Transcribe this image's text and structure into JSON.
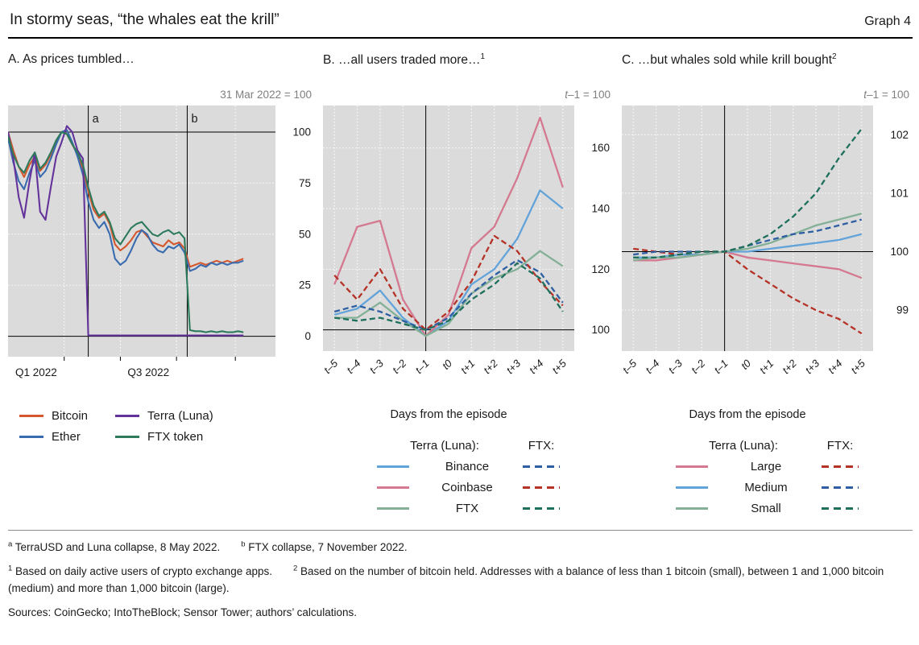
{
  "header": {
    "title": "In stormy seas, “the whales eat the krill”",
    "graph_label": "Graph 4"
  },
  "colors": {
    "plot_bg": "#dbdbdb",
    "gridline": "#ffffff",
    "reference": "#000000",
    "unit_text": "#7f7f7f"
  },
  "chart_data": [
    {
      "id": "A",
      "type": "line",
      "title": "A. As prices tumbled…",
      "unit": "31 Mar 2022 = 100",
      "ylim": [
        -10,
        113
      ],
      "yticks": [
        0,
        25,
        50,
        75,
        100
      ],
      "gridlines_y": [
        25,
        50,
        75
      ],
      "ref_lines_y": [
        100,
        0
      ],
      "grid_x": [
        0.21,
        0.42,
        0.63,
        0.85
      ],
      "xtick_marks": [
        0.21,
        0.42,
        0.63,
        0.85
      ],
      "xtick_labels": [
        {
          "x": 0.105,
          "label": "Q1 2022"
        },
        {
          "x": 0.525,
          "label": "Q3 2022"
        }
      ],
      "event_lines": [
        {
          "x": 0.3,
          "label": "a"
        },
        {
          "x": 0.67,
          "label": "b"
        }
      ],
      "x": [
        0,
        0.02,
        0.04,
        0.06,
        0.08,
        0.1,
        0.12,
        0.14,
        0.16,
        0.18,
        0.2,
        0.22,
        0.24,
        0.26,
        0.28,
        0.3,
        0.32,
        0.34,
        0.36,
        0.38,
        0.4,
        0.42,
        0.44,
        0.46,
        0.48,
        0.5,
        0.52,
        0.54,
        0.56,
        0.58,
        0.6,
        0.62,
        0.64,
        0.66,
        0.68,
        0.7,
        0.72,
        0.74,
        0.76,
        0.78,
        0.8,
        0.82,
        0.84,
        0.86,
        0.88
      ],
      "series": [
        {
          "name": "Bitcoin",
          "color": "#d4572e",
          "dash": false,
          "values": [
            100,
            91,
            83,
            78,
            84,
            88,
            81,
            84,
            89,
            95,
            100,
            99,
            94,
            89,
            82,
            71,
            62,
            58,
            60,
            55,
            45,
            42,
            44,
            47,
            51,
            52,
            49,
            46,
            45,
            44,
            47,
            45,
            46,
            43,
            34,
            35,
            36,
            35,
            36,
            37,
            36,
            37,
            36,
            37,
            38
          ]
        },
        {
          "name": "Ether",
          "color": "#3a6bae",
          "dash": false,
          "values": [
            97,
            85,
            76,
            72,
            80,
            86,
            78,
            81,
            87,
            94,
            100,
            101,
            95,
            88,
            79,
            66,
            57,
            53,
            56,
            50,
            38,
            35,
            37,
            42,
            48,
            52,
            50,
            45,
            42,
            41,
            44,
            43,
            45,
            41,
            32,
            33,
            35,
            34,
            36,
            35,
            36,
            35,
            36,
            36,
            37
          ]
        },
        {
          "name": "Terra (Luna)",
          "color": "#63339b",
          "dash": false,
          "values": [
            100,
            87,
            68,
            58,
            76,
            90,
            61,
            57,
            73,
            88,
            95,
            103,
            100,
            91,
            87,
            0.5,
            0.4,
            0.4,
            0.4,
            0.4,
            0.4,
            0.4,
            0.4,
            0.4,
            0.4,
            0.4,
            0.4,
            0.4,
            0.4,
            0.4,
            0.4,
            0.4,
            0.4,
            0.4,
            0.4,
            0.4,
            0.4,
            0.4,
            0.4,
            0.4,
            0.4,
            0.4,
            0.4,
            0.4,
            0.4
          ]
        },
        {
          "name": "FTX token",
          "color": "#2d7a5c",
          "dash": false,
          "values": [
            98,
            89,
            83,
            80,
            86,
            90,
            82,
            85,
            90,
            96,
            100,
            99,
            94,
            90,
            84,
            73,
            64,
            59,
            61,
            56,
            48,
            45,
            49,
            53,
            55,
            56,
            53,
            50,
            49,
            51,
            52,
            50,
            51,
            48,
            3,
            2.5,
            2.5,
            2,
            2.5,
            2,
            2.5,
            2,
            2,
            2.5,
            2
          ]
        }
      ],
      "legend": {
        "items": [
          {
            "label": "Bitcoin",
            "color": "#d4572e"
          },
          {
            "label": "Ether",
            "color": "#3a6bae"
          },
          {
            "label": "Terra (Luna)",
            "color": "#63339b"
          },
          {
            "label": "FTX token",
            "color": "#2d7a5c"
          }
        ]
      }
    },
    {
      "id": "B",
      "type": "line",
      "title": "B. …all users traded more…",
      "title_sup": "1",
      "unit_italic": "t",
      "unit_rest": "–1 = 100",
      "xaxis_title": "Days from the episode",
      "categories": [
        "t–5",
        "t–4",
        "t–3",
        "t–2",
        "t–1",
        "t0",
        "t+1",
        "t+2",
        "t+3",
        "t+4",
        "t+5"
      ],
      "ylim": [
        93,
        174
      ],
      "yticks": [
        100,
        120,
        140,
        160
      ],
      "gridlines_y": [
        120,
        140,
        160
      ],
      "ref_lines_y": [
        100
      ],
      "vline_category": 4,
      "series": [
        {
          "name": "Binance",
          "episode": "Terra (Luna)",
          "color": "#62a3da",
          "dash": false,
          "values": [
            105,
            107,
            113,
            104,
            98,
            103,
            115,
            120,
            130,
            146,
            140
          ]
        },
        {
          "name": "Coinbase",
          "episode": "Terra (Luna)",
          "color": "#d4798f",
          "dash": false,
          "values": [
            115,
            134,
            136,
            110,
            98,
            105,
            127,
            134,
            150,
            170,
            147
          ]
        },
        {
          "name": "FTX",
          "episode": "Terra (Luna)",
          "color": "#84b097",
          "dash": false,
          "values": [
            104,
            104,
            109,
            103,
            98,
            102,
            112,
            117,
            120,
            126,
            121
          ]
        },
        {
          "name": "Binance",
          "episode": "FTX",
          "color": "#2e5fa3",
          "dash": true,
          "values": [
            106,
            108,
            106,
            103,
            100,
            104,
            112,
            118,
            123,
            119,
            109
          ]
        },
        {
          "name": "Coinbase",
          "episode": "FTX",
          "color": "#b53227",
          "dash": true,
          "values": [
            118,
            110,
            120,
            107,
            100,
            106,
            116,
            131,
            126,
            116,
            108
          ]
        },
        {
          "name": "FTX",
          "episode": "FTX",
          "color": "#1e6f5c",
          "dash": true,
          "values": [
            104,
            103,
            104,
            102,
            100,
            103,
            110,
            115,
            122,
            117,
            106
          ]
        }
      ],
      "legend": {
        "left_header": "Terra (Luna):",
        "right_header": "FTX:",
        "rows": [
          {
            "label": "Binance",
            "solid": "#62a3da",
            "dashed": "#2e5fa3"
          },
          {
            "label": "Coinbase",
            "solid": "#d4798f",
            "dashed": "#b53227"
          },
          {
            "label": "FTX",
            "solid": "#84b097",
            "dashed": "#1e6f5c"
          }
        ]
      }
    },
    {
      "id": "C",
      "type": "line",
      "title": "C. …but whales sold while krill bought",
      "title_sup": "2",
      "unit_italic": "t",
      "unit_rest": "–1 = 100",
      "xaxis_title": "Days from the episode",
      "categories": [
        "t–5",
        "t–4",
        "t–3",
        "t–2",
        "t–1",
        "t0",
        "t+1",
        "t+2",
        "t+3",
        "t+4",
        "t+5"
      ],
      "ylim": [
        98.3,
        102.5
      ],
      "yticks": [
        99,
        100,
        101,
        102
      ],
      "gridlines_y": [
        99,
        101,
        102
      ],
      "ref_lines_y": [
        100
      ],
      "vline_category": 4,
      "series": [
        {
          "name": "Large",
          "episode": "Terra (Luna)",
          "color": "#d4798f",
          "dash": false,
          "values": [
            99.85,
            99.85,
            99.9,
            99.95,
            100,
            99.9,
            99.85,
            99.8,
            99.75,
            99.7,
            99.55
          ]
        },
        {
          "name": "Medium",
          "episode": "Terra (Luna)",
          "color": "#62a3da",
          "dash": false,
          "values": [
            99.9,
            99.9,
            99.95,
            99.95,
            100,
            100,
            100.05,
            100.1,
            100.15,
            100.2,
            100.3
          ]
        },
        {
          "name": "Small",
          "episode": "Terra (Luna)",
          "color": "#84b097",
          "dash": false,
          "values": [
            99.85,
            99.9,
            99.9,
            99.95,
            100,
            100.05,
            100.15,
            100.3,
            100.45,
            100.55,
            100.65
          ]
        },
        {
          "name": "Large",
          "episode": "FTX",
          "color": "#b53227",
          "dash": true,
          "values": [
            100.05,
            100,
            99.95,
            100,
            100,
            99.7,
            99.45,
            99.2,
            99,
            98.85,
            98.6
          ]
        },
        {
          "name": "Medium",
          "episode": "FTX",
          "color": "#2e5fa3",
          "dash": true,
          "values": [
            99.95,
            100,
            100,
            100,
            100,
            100.1,
            100.2,
            100.3,
            100.35,
            100.45,
            100.55
          ]
        },
        {
          "name": "Small",
          "episode": "FTX",
          "color": "#1e6f5c",
          "dash": true,
          "values": [
            99.9,
            99.9,
            99.95,
            100,
            100,
            100.1,
            100.3,
            100.6,
            101,
            101.6,
            102.1
          ]
        }
      ],
      "legend": {
        "left_header": "Terra (Luna):",
        "right_header": "FTX:",
        "rows": [
          {
            "label": "Large",
            "solid": "#d4798f",
            "dashed": "#b53227"
          },
          {
            "label": "Medium",
            "solid": "#62a3da",
            "dashed": "#2e5fa3"
          },
          {
            "label": "Small",
            "solid": "#84b097",
            "dashed": "#1e6f5c"
          }
        ]
      }
    }
  ],
  "footnotes": {
    "line1": [
      {
        "sup": "a",
        "text": "TerraUSD and Luna collapse, 8 May 2022."
      },
      {
        "sup": "b",
        "text": "FTX collapse, 7 November 2022."
      }
    ],
    "line2": [
      {
        "sup": "1",
        "text": "Based on daily active users of crypto exchange apps."
      },
      {
        "sup": "2",
        "text": "Based on the number of bitcoin held. Addresses with a balance of less than 1 bitcoin (small), between 1 and 1,000 bitcoin (medium) and more than 1,000 bitcoin (large)."
      }
    ],
    "sources": "Sources: CoinGecko; IntoTheBlock; Sensor Tower; authors’ calculations."
  }
}
